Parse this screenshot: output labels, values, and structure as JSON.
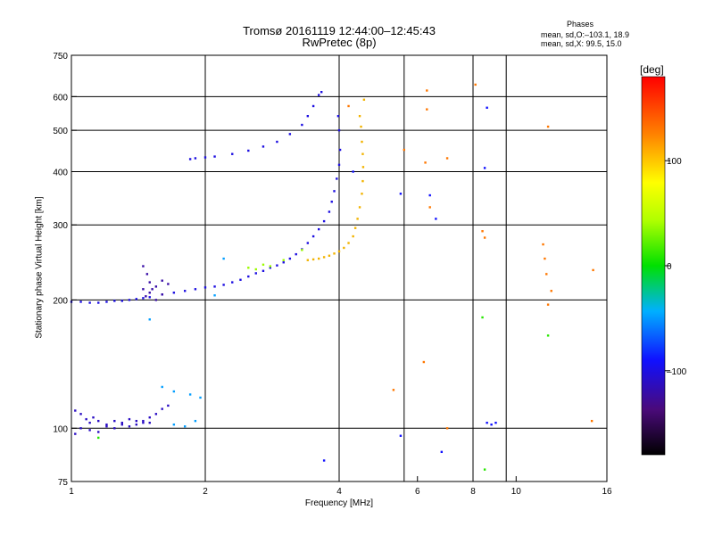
{
  "title_line1": "Tromsø 20161119 12:44:00–12:45:43",
  "title_line2": "RwPretec (8p)",
  "phases": {
    "title": "Phases",
    "o_line": "mean, sd,O:–103.1, 18.9",
    "x_line": "mean, sd,X:  99.5, 15.0"
  },
  "colorbar": {
    "unit": "[deg]",
    "ticks": [
      "100",
      "0",
      "–100"
    ],
    "tick_values": [
      100,
      0,
      -100
    ],
    "range": [
      -180,
      180
    ]
  },
  "chart_data": {
    "type": "scatter",
    "xlabel": "Frequency [MHz]",
    "ylabel": "Stationary phase Virtual Height [km]",
    "xscale": "log2",
    "yscale": "log",
    "xlim": [
      1,
      16
    ],
    "ylim": [
      75,
      750
    ],
    "xticks": [
      1,
      2,
      4,
      6,
      8,
      10,
      16
    ],
    "xtick_labels": [
      "1",
      "2",
      "4",
      "6",
      "8",
      "10",
      "16"
    ],
    "yticks": [
      75,
      100,
      200,
      300,
      400,
      500,
      600,
      750
    ],
    "ytick_labels": [
      "75",
      "100",
      "200",
      "300",
      "400",
      "500",
      "600",
      "750"
    ],
    "grid_x": [
      2,
      4,
      5.6,
      8,
      9.5
    ],
    "grid_y": [
      100,
      200,
      300,
      400,
      500,
      600
    ],
    "colors": {
      "o_trace_blue": "#1e2ad8",
      "o_trace_violet": "#4a1a9a",
      "x_trace": "#f2b300",
      "orange": "#f07000"
    },
    "series": [
      {
        "phase": -100,
        "points": [
          [
            1.0,
            198
          ],
          [
            1.05,
            198
          ],
          [
            1.1,
            197
          ],
          [
            1.15,
            197
          ],
          [
            1.2,
            198
          ],
          [
            1.25,
            199
          ],
          [
            1.3,
            199
          ],
          [
            1.35,
            200
          ],
          [
            1.4,
            201
          ],
          [
            1.45,
            202
          ],
          [
            1.5,
            203
          ],
          [
            1.6,
            206
          ],
          [
            1.7,
            208
          ],
          [
            1.8,
            210
          ],
          [
            1.9,
            212
          ],
          [
            2.0,
            214
          ],
          [
            2.1,
            215
          ],
          [
            2.2,
            217
          ],
          [
            2.3,
            220
          ],
          [
            2.4,
            223
          ],
          [
            2.5,
            227
          ],
          [
            2.6,
            231
          ],
          [
            2.7,
            234
          ],
          [
            2.8,
            238
          ],
          [
            2.9,
            241
          ],
          [
            3.0,
            245
          ],
          [
            3.1,
            250
          ],
          [
            3.2,
            256
          ],
          [
            3.3,
            263
          ],
          [
            3.4,
            272
          ],
          [
            3.5,
            282
          ],
          [
            3.6,
            293
          ],
          [
            3.7,
            306
          ],
          [
            3.8,
            322
          ],
          [
            3.85,
            340
          ],
          [
            3.9,
            360
          ],
          [
            3.95,
            385
          ],
          [
            4.0,
            415
          ],
          [
            4.02,
            450
          ],
          [
            4.0,
            500
          ],
          [
            3.98,
            540
          ],
          [
            1.85,
            428
          ],
          [
            1.9,
            430
          ],
          [
            2.0,
            432
          ],
          [
            2.1,
            434
          ],
          [
            2.3,
            440
          ],
          [
            2.5,
            448
          ],
          [
            2.7,
            458
          ],
          [
            2.9,
            470
          ],
          [
            3.1,
            490
          ],
          [
            3.3,
            515
          ],
          [
            3.4,
            540
          ],
          [
            3.5,
            570
          ],
          [
            3.6,
            605
          ],
          [
            3.65,
            615
          ]
        ]
      },
      {
        "phase": -120,
        "points": [
          [
            1.45,
            240
          ],
          [
            1.48,
            230
          ],
          [
            1.5,
            220
          ],
          [
            1.52,
            212
          ],
          [
            1.55,
            215
          ],
          [
            1.6,
            222
          ],
          [
            1.65,
            218
          ],
          [
            1.45,
            212
          ],
          [
            1.47,
            204
          ],
          [
            1.5,
            208
          ],
          [
            1.55,
            200
          ],
          [
            1.6,
            206
          ]
        ]
      },
      {
        "phase": -110,
        "points": [
          [
            1.02,
            110
          ],
          [
            1.05,
            108
          ],
          [
            1.08,
            105
          ],
          [
            1.1,
            103
          ],
          [
            1.12,
            106
          ],
          [
            1.15,
            104
          ],
          [
            1.2,
            102
          ],
          [
            1.25,
            104
          ],
          [
            1.3,
            103
          ],
          [
            1.35,
            105
          ],
          [
            1.4,
            104
          ],
          [
            1.45,
            103
          ],
          [
            1.5,
            106
          ],
          [
            1.55,
            108
          ],
          [
            1.6,
            111
          ],
          [
            1.65,
            113
          ],
          [
            1.02,
            97
          ],
          [
            1.05,
            100
          ],
          [
            1.1,
            99
          ],
          [
            1.15,
            98
          ],
          [
            1.2,
            101
          ],
          [
            1.25,
            100
          ],
          [
            1.3,
            102
          ],
          [
            1.35,
            101
          ],
          [
            1.4,
            102
          ],
          [
            1.45,
            104
          ],
          [
            1.5,
            103
          ]
        ]
      },
      {
        "phase": 110,
        "points": [
          [
            3.4,
            248
          ],
          [
            3.5,
            249
          ],
          [
            3.6,
            250
          ],
          [
            3.7,
            252
          ],
          [
            3.8,
            254
          ],
          [
            3.9,
            257
          ],
          [
            4.0,
            260
          ],
          [
            4.1,
            265
          ],
          [
            4.2,
            272
          ],
          [
            4.3,
            282
          ],
          [
            4.35,
            295
          ],
          [
            4.4,
            310
          ],
          [
            4.45,
            330
          ],
          [
            4.5,
            355
          ],
          [
            4.52,
            380
          ],
          [
            4.53,
            410
          ],
          [
            4.52,
            440
          ],
          [
            4.5,
            470
          ],
          [
            4.48,
            510
          ],
          [
            4.45,
            540
          ],
          [
            4.55,
            590
          ]
        ]
      },
      {
        "phase": 40,
        "points": [
          [
            2.5,
            238
          ],
          [
            2.6,
            236
          ],
          [
            2.7,
            242
          ],
          [
            2.8,
            240
          ],
          [
            3.0,
            248
          ],
          [
            3.3,
            262
          ]
        ]
      },
      {
        "phase": 130,
        "points": [
          [
            6.3,
            620
          ],
          [
            6.3,
            560
          ],
          [
            6.25,
            420
          ],
          [
            6.4,
            330
          ],
          [
            7.0,
            430
          ],
          [
            8.1,
            640
          ],
          [
            8.4,
            290
          ],
          [
            8.5,
            280
          ],
          [
            4.2,
            570
          ],
          [
            5.6,
            450
          ],
          [
            7.0,
            100
          ],
          [
            5.3,
            123
          ],
          [
            6.2,
            143
          ],
          [
            11.8,
            510
          ],
          [
            11.5,
            270
          ],
          [
            11.6,
            250
          ],
          [
            11.7,
            230
          ],
          [
            12.0,
            210
          ],
          [
            11.8,
            195
          ],
          [
            14.8,
            104
          ],
          [
            14.9,
            235
          ]
        ]
      },
      {
        "phase": -90,
        "points": [
          [
            5.5,
            355
          ],
          [
            6.4,
            352
          ],
          [
            6.6,
            310
          ],
          [
            8.5,
            408
          ],
          [
            8.6,
            565
          ],
          [
            8.6,
            103
          ],
          [
            8.8,
            102
          ],
          [
            9.0,
            103
          ],
          [
            5.5,
            96
          ],
          [
            6.8,
            88
          ],
          [
            4.3,
            400
          ],
          [
            3.7,
            84
          ]
        ]
      },
      {
        "phase": 10,
        "points": [
          [
            8.5,
            80
          ],
          [
            11.8,
            165
          ],
          [
            1.15,
            95
          ],
          [
            8.4,
            182
          ]
        ]
      },
      {
        "phase": -50,
        "points": [
          [
            1.6,
            125
          ],
          [
            1.7,
            122
          ],
          [
            1.85,
            120
          ],
          [
            1.95,
            118
          ],
          [
            1.7,
            102
          ],
          [
            1.8,
            101
          ],
          [
            1.9,
            104
          ],
          [
            2.1,
            205
          ],
          [
            2.2,
            250
          ],
          [
            1.5,
            180
          ]
        ]
      }
    ]
  }
}
